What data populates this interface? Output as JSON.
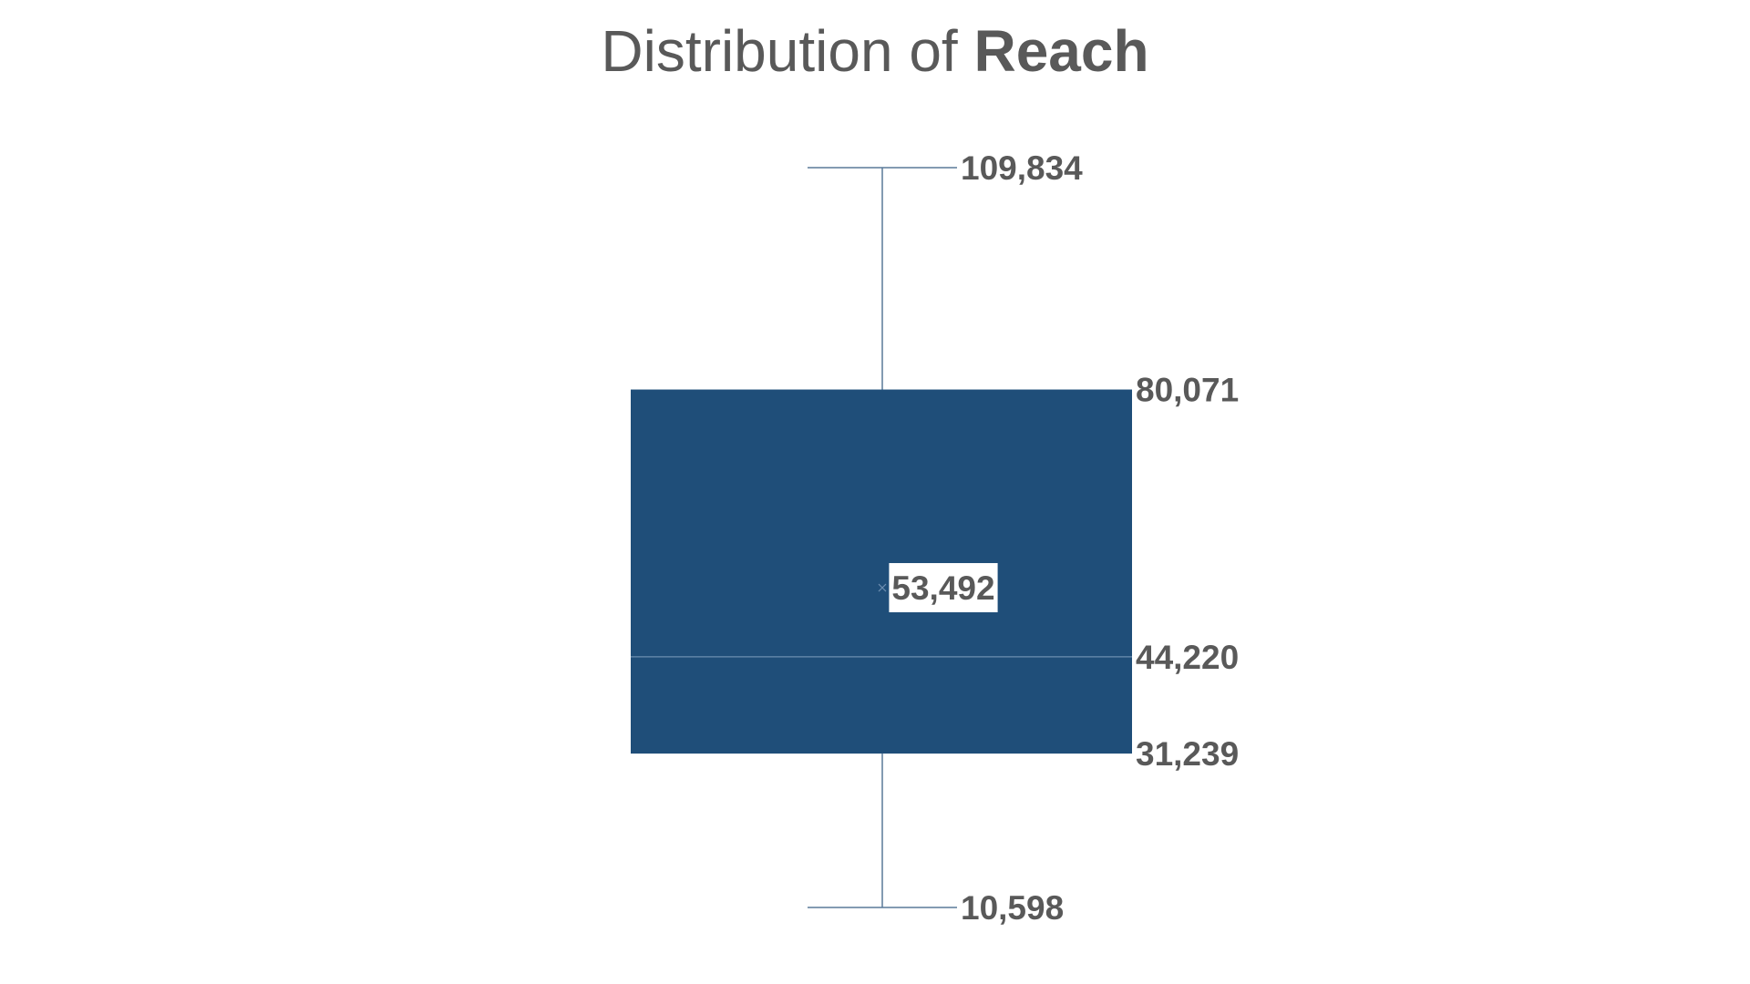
{
  "title": {
    "prefix": "Distribution of ",
    "bold": "Reach"
  },
  "colors": {
    "box_fill": "#1f4e79",
    "whisker": "#5a7a99",
    "median_line": "#6c8db0",
    "label_text": "#595959",
    "mean_label_bg": "#ffffff"
  },
  "chart_data": {
    "type": "box",
    "title": "Distribution of Reach",
    "xlabel": "",
    "ylabel": "",
    "ylim": [
      10598,
      109834
    ],
    "grid": false,
    "legend": "none",
    "series": [
      {
        "name": "",
        "max": 109834,
        "q3": 80071,
        "mean": 53492,
        "median": 44220,
        "q1": 31239,
        "min": 10598
      }
    ],
    "labels": {
      "max": "109,834",
      "q3": "80,071",
      "mean": "53,492",
      "median": "44,220",
      "q1": "31,239",
      "min": "10,598"
    }
  }
}
